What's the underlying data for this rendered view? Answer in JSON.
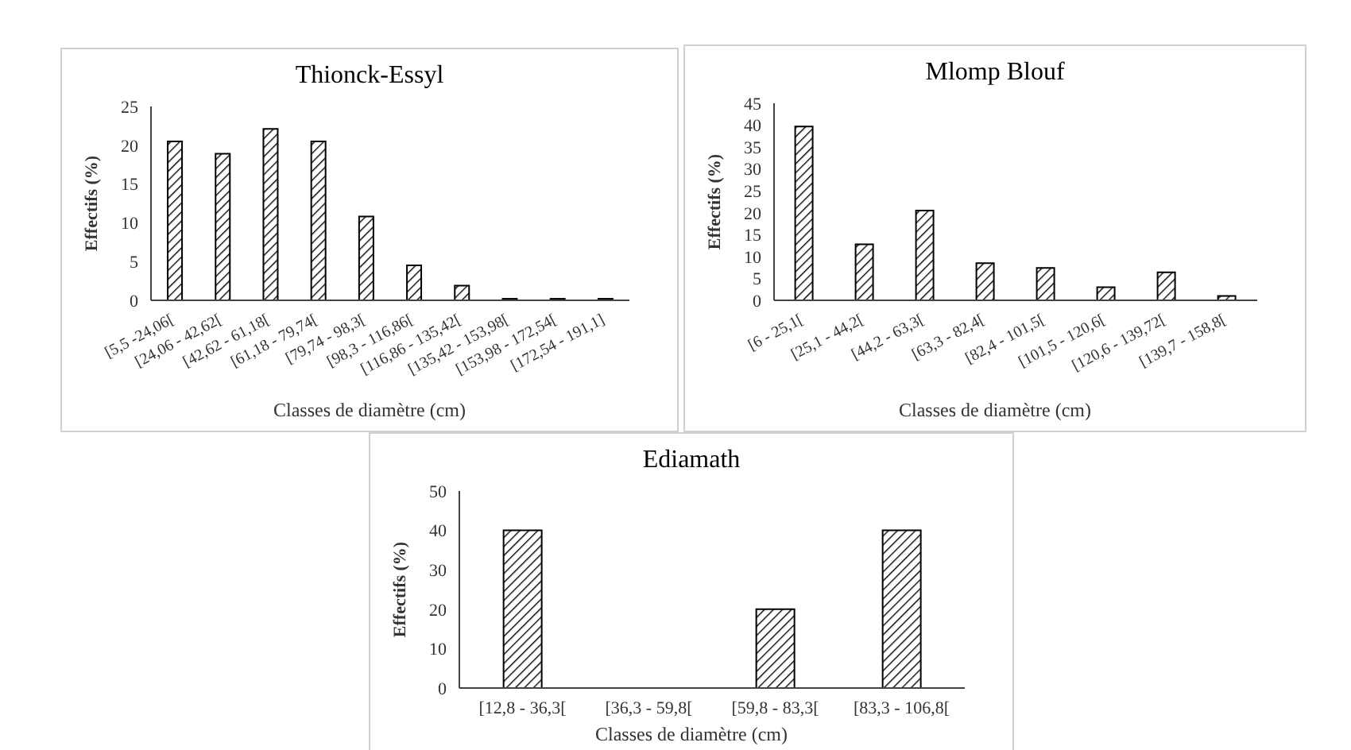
{
  "chart_data": [
    {
      "type": "bar",
      "title": "Thionck-Essyl",
      "xlabel": "Classes de diamètre (cm)",
      "ylabel": "Effectifs (%)",
      "categories": [
        "[5,5 -24,06[",
        "[24,06 - 42,62[",
        "[42,62 - 61,18[",
        "[61,18 - 79,74[",
        "[79,74 - 98,3[",
        "[98,3 - 116,86[",
        "[116,86 - 135,42[",
        "[135,42 - 153,98[",
        "[153,98 - 172,54[",
        "[172,54 - 191,1]"
      ],
      "series": [
        {
          "color": "#000000",
          "values": [
            20.5,
            18.9,
            22.1,
            20.5,
            10.8,
            4.5,
            1.9,
            0.2,
            0.2,
            0.2
          ]
        }
      ],
      "ylim": [
        0,
        25
      ],
      "yticks": [
        0,
        5,
        10,
        15,
        20,
        25
      ],
      "grid": false,
      "legend": false
    },
    {
      "type": "bar",
      "title": "Mlomp Blouf",
      "xlabel": "Classes de diamètre (cm)",
      "ylabel": "Effectifs (%)",
      "categories": [
        "[6 - 25,1[",
        "[25,1 - 44,2[",
        "[44,2 - 63,3[",
        "[63,3 - 82,4[",
        "[82,4 - 101,5[",
        "[101,5 - 120,6[",
        "[120,6 - 139,72[",
        "[139,7 - 158,8["
      ],
      "series": [
        {
          "color": "#000000",
          "values": [
            39.7,
            12.8,
            20.5,
            8.5,
            7.4,
            3.0,
            6.4,
            1.0
          ]
        }
      ],
      "ylim": [
        0,
        45
      ],
      "yticks": [
        0,
        5,
        10,
        15,
        20,
        25,
        30,
        35,
        40,
        45
      ],
      "grid": false,
      "legend": false
    },
    {
      "type": "bar",
      "title": "Ediamath",
      "xlabel": "Classes de diamètre (cm)",
      "ylabel": "Effectifs (%)",
      "categories": [
        "[12,8 - 36,3[",
        "[36,3 - 59,8[",
        "[59,8 - 83,3[",
        "[83,3 - 106,8["
      ],
      "series": [
        {
          "color": "#000000",
          "values": [
            40,
            0,
            20,
            40
          ]
        }
      ],
      "ylim": [
        0,
        50
      ],
      "yticks": [
        0,
        10,
        20,
        30,
        40,
        50
      ],
      "grid": false,
      "legend": false
    }
  ]
}
